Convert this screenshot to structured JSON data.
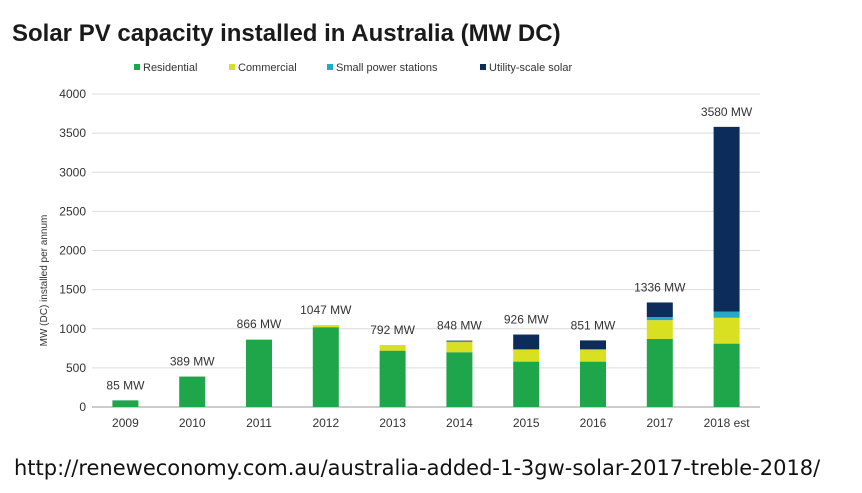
{
  "title": "Solar PV capacity installed in Australia (MW DC)",
  "source_text": "http://reneweconomy.com.au/australia-added-1-3gw-solar-2017-treble-2018/",
  "chart_data": {
    "type": "bar",
    "stacked": true,
    "title": "Solar PV capacity installed in Australia (MW DC)",
    "ylabel": "MW (DC) installed per annum",
    "xlabel": "",
    "ylim": [
      0,
      4000
    ],
    "yticks": [
      0,
      500,
      1000,
      1500,
      2000,
      2500,
      3000,
      3500,
      4000
    ],
    "grid": true,
    "legend_position": "top",
    "categories": [
      "2009",
      "2010",
      "2011",
      "2012",
      "2013",
      "2014",
      "2015",
      "2016",
      "2017",
      "2018 est"
    ],
    "series": [
      {
        "name": "Residential",
        "color": "#1fa64a",
        "values": [
          85,
          389,
          860,
          1020,
          720,
          700,
          580,
          580,
          870,
          810
        ]
      },
      {
        "name": "Commercial",
        "color": "#d9e021",
        "values": [
          0,
          0,
          6,
          27,
          72,
          130,
          150,
          150,
          240,
          330
        ]
      },
      {
        "name": "Small power stations",
        "color": "#26a9c9",
        "values": [
          0,
          0,
          0,
          0,
          0,
          10,
          10,
          10,
          40,
          80
        ]
      },
      {
        "name": "Utility-scale solar",
        "color": "#0c2c5a",
        "values": [
          0,
          0,
          0,
          0,
          0,
          8,
          186,
          111,
          186,
          2360
        ]
      }
    ],
    "totals": [
      "85 MW",
      "389 MW",
      "866 MW",
      "1047 MW",
      "792 MW",
      "848 MW",
      "926 MW",
      "851 MW",
      "1336 MW",
      "3580 MW"
    ]
  }
}
